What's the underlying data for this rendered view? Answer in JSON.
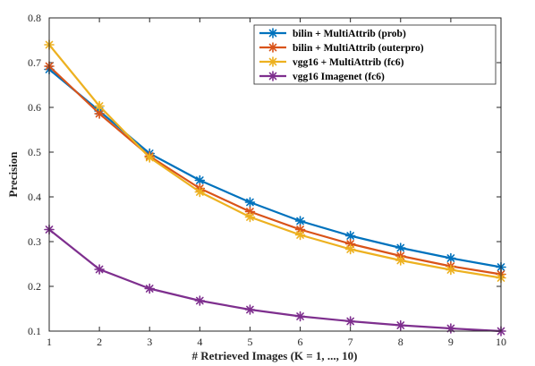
{
  "chart_data": {
    "type": "line",
    "title": "",
    "xlabel": "# Retrieved Images (K = 1, ..., 10)",
    "ylabel": "Precision",
    "x": [
      1,
      2,
      3,
      4,
      5,
      6,
      7,
      8,
      9,
      10
    ],
    "xlim": [
      1,
      10
    ],
    "ylim": [
      0.1,
      0.8
    ],
    "xticks": [
      "1",
      "2",
      "3",
      "4",
      "5",
      "6",
      "7",
      "8",
      "9",
      "10"
    ],
    "yticks": [
      "0.1",
      "0.2",
      "0.3",
      "0.4",
      "0.5",
      "0.6",
      "0.7",
      "0.8"
    ],
    "grid": false,
    "legend_position": "top-right",
    "marker": "asterisk",
    "series": [
      {
        "name": "bilin + MultiAttrib (prob)",
        "color": "#0072bd",
        "values": [
          0.685,
          0.592,
          0.497,
          0.437,
          0.388,
          0.346,
          0.313,
          0.286,
          0.263,
          0.243
        ]
      },
      {
        "name": "bilin + MultiAttrib (outerpro)",
        "color": "#d95319",
        "values": [
          0.692,
          0.586,
          0.491,
          0.419,
          0.367,
          0.327,
          0.295,
          0.268,
          0.245,
          0.227
        ]
      },
      {
        "name": "vgg16 + MultiAttrib (fc6)",
        "color": "#edb120",
        "values": [
          0.74,
          0.603,
          0.488,
          0.411,
          0.355,
          0.315,
          0.283,
          0.258,
          0.237,
          0.219
        ]
      },
      {
        "name": "vgg16 Imagenet (fc6)",
        "color": "#7e2f8e",
        "values": [
          0.327,
          0.238,
          0.195,
          0.168,
          0.148,
          0.133,
          0.122,
          0.113,
          0.106,
          0.1
        ]
      }
    ]
  }
}
